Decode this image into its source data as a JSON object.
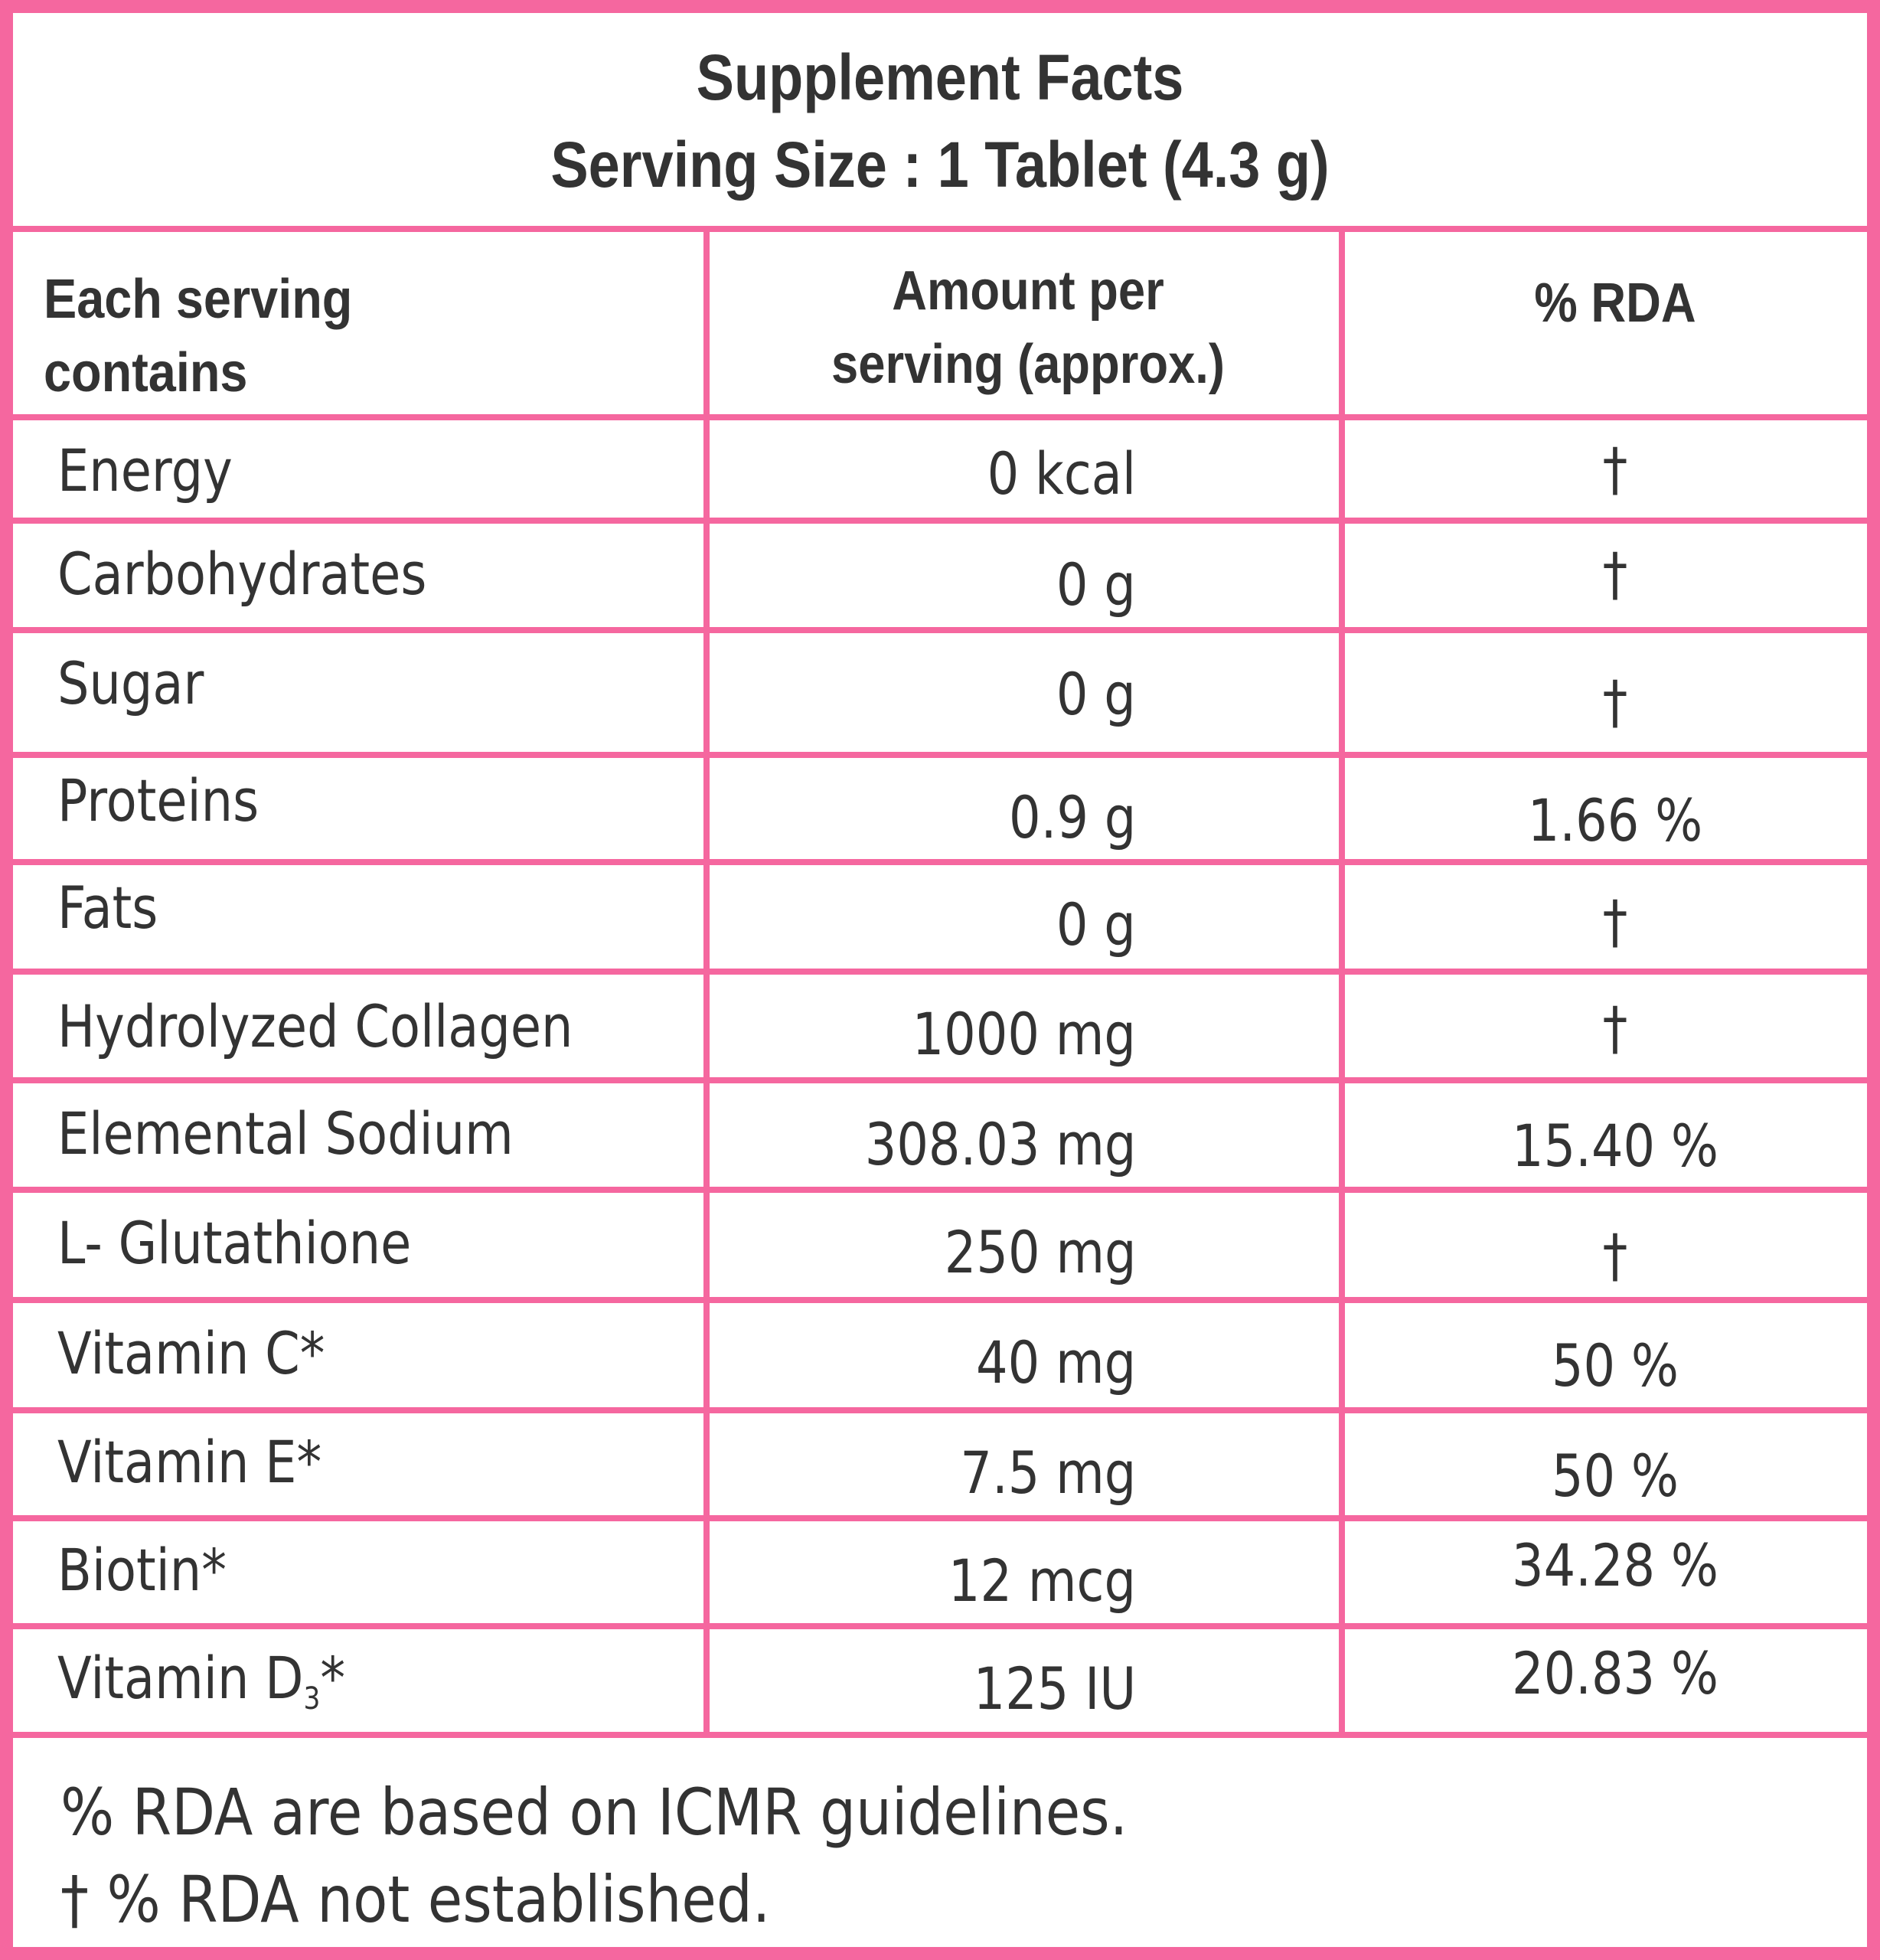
{
  "title": "Supplement Facts",
  "serving_size": "Serving Size : 1 Tablet (4.3 g)",
  "headers": {
    "col1_line1": "Each serving",
    "col1_line2": "contains",
    "col2_line1": "Amount per",
    "col2_line2": "serving (approx.)",
    "col3": "% RDA"
  },
  "rows": [
    {
      "name": "Energy",
      "amount": "0 kcal",
      "rda": "†"
    },
    {
      "name": "Carbohydrates",
      "amount": "0 g",
      "rda": "†"
    },
    {
      "name": "Sugar",
      "amount": "0 g",
      "rda": "†"
    },
    {
      "name": "Proteins",
      "amount": "0.9 g",
      "rda": "1.66 %"
    },
    {
      "name": "Fats",
      "amount": "0 g",
      "rda": "†"
    },
    {
      "name": "Hydrolyzed Collagen",
      "amount": "1000 mg",
      "rda": "†"
    },
    {
      "name": "Elemental Sodium",
      "amount": "308.03 mg",
      "rda": "15.40 %"
    },
    {
      "name": "L- Glutathione",
      "amount": "250 mg",
      "rda": "†"
    },
    {
      "name": "Vitamin C*",
      "amount": "40 mg",
      "rda": "50 %"
    },
    {
      "name": "Vitamin E*",
      "amount": "7.5 mg",
      "rda": "50 %"
    },
    {
      "name": "Biotin*",
      "amount": "12 mcg",
      "rda": "34.28 %"
    },
    {
      "name": "Vitamin D",
      "name_sub": "3",
      "name_suffix": "*",
      "amount": "125 IU",
      "rda": "20.83 %"
    }
  ],
  "footnotes": {
    "line1": "% RDA are based on ICMR guidelines.",
    "line2": "† % RDA not established."
  },
  "colors": {
    "border": "#f5679f",
    "text": "#333333",
    "background": "#ffffff"
  }
}
